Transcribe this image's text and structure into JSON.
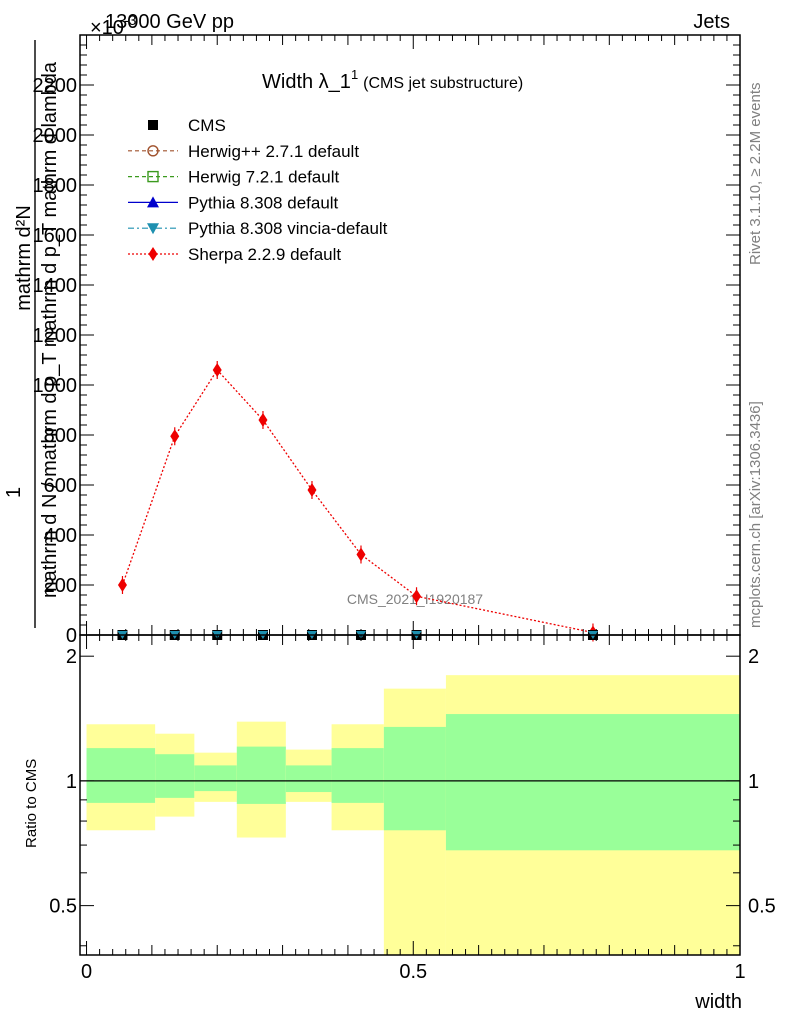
{
  "header": {
    "energy_label": "13000 GeV pp",
    "category_label": "Jets",
    "exponent_label": "×10",
    "exponent_power": "-3"
  },
  "side_labels": {
    "rivet": "Rivet 3.1.10, ≥ 2.2M events",
    "mcplots": "mcplots.cern.ch [arXiv:1306.3436]"
  },
  "watermark": "CMS_2021_I1920187",
  "colors": {
    "cms": "#000000",
    "herwigpp": "#a0522d",
    "herwig7": "#3b9a1e",
    "pythia": "#0000cc",
    "vincia": "#1e90b0",
    "sherpa": "#ee0000",
    "band_outer": "#ffff99",
    "band_inner": "#99ff99"
  },
  "chart_data": [
    {
      "type": "line",
      "title_main": "Width λ_1",
      "title_sup": "1",
      "title_sub": "(CMS jet substructure)",
      "ylabel_numerator": "mathrm d²N",
      "ylabel_numerator_sub": "1",
      "ylabel_denominator": "mathrm d N / mathrm d p_T mathrm d p_T mathrm d lambda",
      "ylim": [
        0,
        2400
      ],
      "xlim": [
        -0.01,
        1.0
      ],
      "yticks": [
        "0",
        "200",
        "400",
        "600",
        "800",
        "1000",
        "1200",
        "1400",
        "1600",
        "1800",
        "2000",
        "2200"
      ],
      "legend": [
        {
          "key": "cms",
          "label": "CMS",
          "marker": "square-filled",
          "line": "none"
        },
        {
          "key": "herwigpp",
          "label": "Herwig++ 2.7.1 default",
          "marker": "circle-open",
          "line": "dashed"
        },
        {
          "key": "herwig7",
          "label": "Herwig 7.2.1 default",
          "marker": "square-open",
          "line": "dashed"
        },
        {
          "key": "pythia",
          "label": "Pythia 8.308 default",
          "marker": "triangle-up",
          "line": "solid"
        },
        {
          "key": "vincia",
          "label": "Pythia 8.308 vincia-default",
          "marker": "triangle-down",
          "line": "dashdot"
        },
        {
          "key": "sherpa",
          "label": "Sherpa 2.2.9 default",
          "marker": "diamond",
          "line": "dotted"
        }
      ],
      "x": [
        0.055,
        0.135,
        0.2,
        0.27,
        0.345,
        0.42,
        0.505,
        0.775
      ],
      "series": [
        {
          "name": "Sherpa 2.2.9 default",
          "key": "sherpa",
          "values": [
            200,
            795,
            1060,
            860,
            580,
            322,
            155,
            10
          ]
        },
        {
          "name": "CMS",
          "key": "cms",
          "values": [
            0,
            0,
            0,
            0,
            0,
            0,
            0,
            0
          ]
        },
        {
          "name": "Pythia 8.308 vincia-default",
          "key": "vincia",
          "values": [
            0,
            0,
            0,
            0,
            0,
            0,
            0,
            0
          ]
        }
      ]
    },
    {
      "type": "area",
      "ylabel": "Ratio to CMS",
      "xlabel": "width",
      "ylim": [
        0.38,
        2.25
      ],
      "xlim": [
        -0.01,
        1.0
      ],
      "yticks": [
        0.5,
        1,
        2
      ],
      "ytick_labels": [
        "0.5",
        "1",
        "2"
      ],
      "xticks": [
        0,
        0.5,
        1
      ],
      "xtick_labels": [
        "0",
        "0.5",
        "1"
      ],
      "bins": [
        {
          "x0": 0.0,
          "x1": 0.105,
          "outer": [
            0.76,
            1.37
          ],
          "inner": [
            0.885,
            1.2
          ]
        },
        {
          "x0": 0.105,
          "x1": 0.165,
          "outer": [
            0.82,
            1.3
          ],
          "inner": [
            0.91,
            1.16
          ]
        },
        {
          "x0": 0.165,
          "x1": 0.23,
          "outer": [
            0.89,
            1.17
          ],
          "inner": [
            0.945,
            1.09
          ]
        },
        {
          "x0": 0.23,
          "x1": 0.305,
          "outer": [
            0.73,
            1.39
          ],
          "inner": [
            0.88,
            1.21
          ]
        },
        {
          "x0": 0.305,
          "x1": 0.375,
          "outer": [
            0.89,
            1.19
          ],
          "inner": [
            0.94,
            1.09
          ]
        },
        {
          "x0": 0.375,
          "x1": 0.455,
          "outer": [
            0.76,
            1.37
          ],
          "inner": [
            0.885,
            1.2
          ]
        },
        {
          "x0": 0.455,
          "x1": 0.55,
          "outer": [
            0.38,
            1.67
          ],
          "inner": [
            0.76,
            1.35
          ]
        },
        {
          "x0": 0.55,
          "x1": 1.0,
          "outer": [
            0.38,
            1.8
          ],
          "inner": [
            0.68,
            1.45
          ]
        }
      ],
      "reference": 1
    }
  ]
}
